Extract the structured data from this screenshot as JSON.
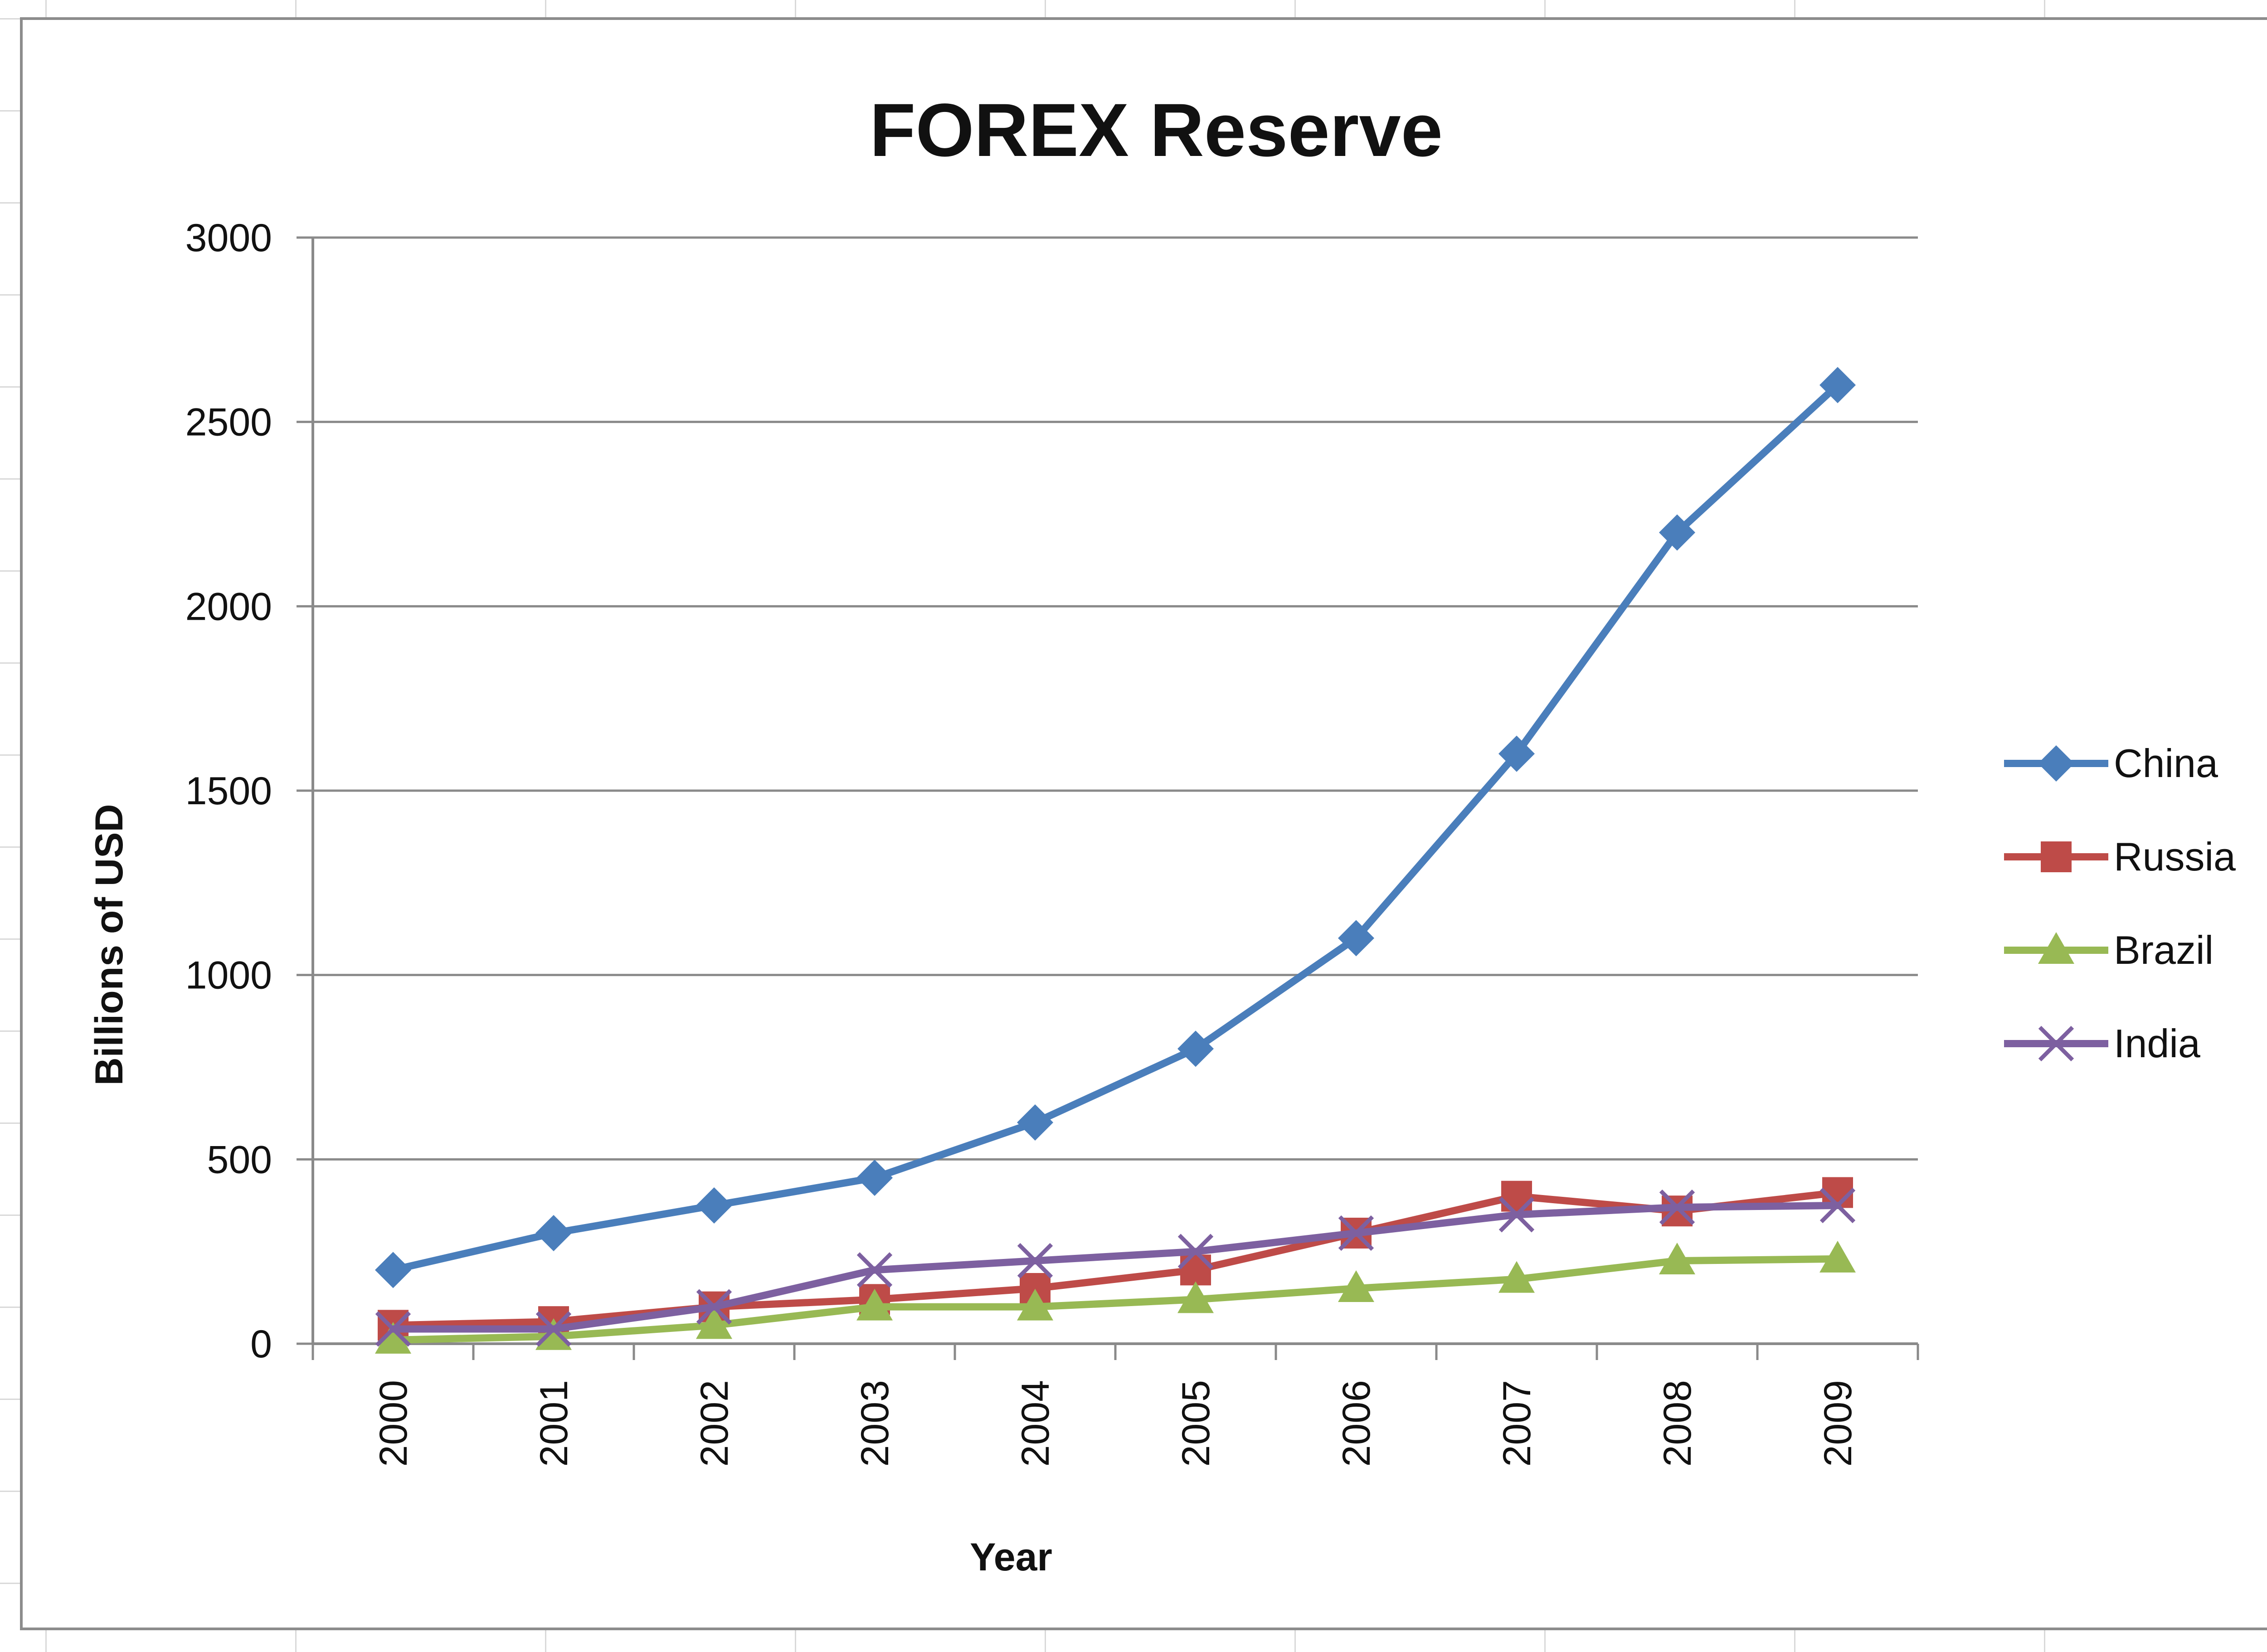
{
  "chart_data": {
    "type": "line",
    "title": "FOREX Reserve",
    "xlabel": "Year",
    "ylabel": "Billions of USD",
    "categories": [
      "2000",
      "2001",
      "2002",
      "2003",
      "2004",
      "2005",
      "2006",
      "2007",
      "2008",
      "2009"
    ],
    "ylim": [
      0,
      3000
    ],
    "yticks": [
      "0",
      "500",
      "1000",
      "1500",
      "2000",
      "2500",
      "3000"
    ],
    "grid": true,
    "legend_position": "right",
    "series": [
      {
        "name": "China",
        "color": "#4a7ebb",
        "marker": "diamond",
        "values": [
          200,
          300,
          375,
          450,
          600,
          800,
          1100,
          1600,
          2200,
          2600
        ]
      },
      {
        "name": "Russia",
        "color": "#be4b48",
        "marker": "square",
        "values": [
          50,
          60,
          100,
          120,
          150,
          200,
          300,
          400,
          360,
          410
        ]
      },
      {
        "name": "Brazil",
        "color": "#98b954",
        "marker": "triangle",
        "values": [
          10,
          20,
          50,
          100,
          100,
          120,
          150,
          175,
          225,
          230
        ]
      },
      {
        "name": "India",
        "color": "#7d60a0",
        "marker": "x",
        "values": [
          40,
          40,
          100,
          200,
          225,
          250,
          300,
          350,
          370,
          375
        ]
      }
    ]
  }
}
